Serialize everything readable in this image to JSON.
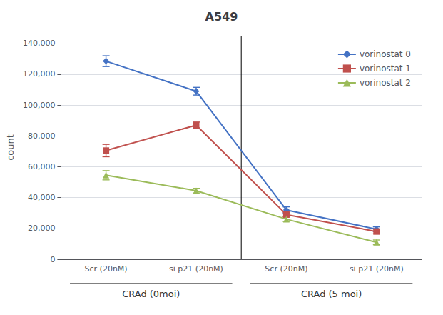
{
  "chart_data": {
    "type": "line",
    "title": "A549",
    "ylabel": "count",
    "categories": [
      "Scr (20nM)",
      "si p21 (20nM)",
      "Scr (20nM)",
      "si p21 (20nM)"
    ],
    "group_labels": [
      "CRAd (0moi)",
      "CRAd (5 moi)"
    ],
    "series": [
      {
        "name": "vorinostat 0",
        "color": "#4472C4",
        "marker": "diamond",
        "values": [
          128500,
          109000,
          32000,
          19500
        ],
        "errors": [
          3500,
          2500,
          2000,
          1500
        ]
      },
      {
        "name": "vorinostat 1",
        "color": "#C0504D",
        "marker": "square",
        "values": [
          70500,
          87000,
          29000,
          18000
        ],
        "errors": [
          4000,
          2000,
          1500,
          1500
        ]
      },
      {
        "name": "vorinostat 2",
        "color": "#9BBB59",
        "marker": "triangle",
        "values": [
          54500,
          44500,
          26000,
          11000
        ],
        "errors": [
          3000,
          1500,
          1500,
          1500
        ]
      }
    ],
    "ylim": [
      0,
      145000
    ],
    "yticks": [
      0,
      20000,
      40000,
      60000,
      80000,
      100000,
      120000,
      140000
    ],
    "grid": true,
    "legend": "upper right"
  }
}
